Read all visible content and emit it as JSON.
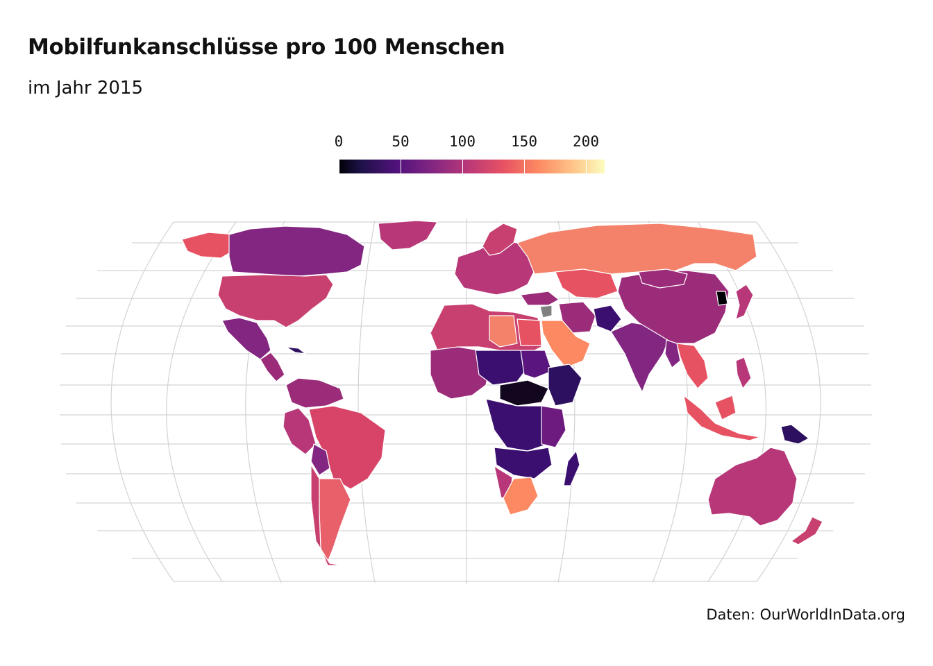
{
  "title": "Mobilfunkanschlüsse pro 100 Menschen",
  "subtitle": "im Jahr 2015",
  "caption": "Daten: OurWorldInData.org",
  "legend": {
    "labels": [
      "0",
      "50",
      "100",
      "150",
      "200"
    ],
    "values": [
      0,
      50,
      100,
      150,
      200
    ],
    "min": 0,
    "max": 215,
    "palette": [
      "#000004",
      "#1d1147",
      "#51127c",
      "#822681",
      "#b73779",
      "#e75263",
      "#fc8961",
      "#fec488",
      "#fcfdbf"
    ]
  },
  "colors": {
    "low": "#3b0f70",
    "mid": "#b73779",
    "high": "#fc8961",
    "no_data": "#808080",
    "border": "#ffffff",
    "graticule": "#d3d3d3"
  }
}
